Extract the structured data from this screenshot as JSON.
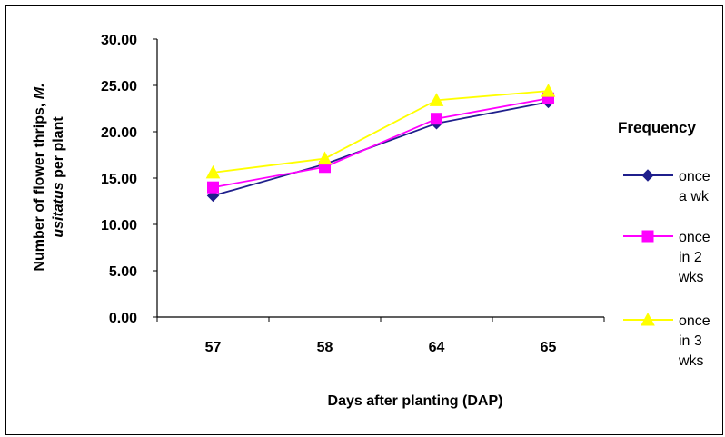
{
  "chart_data": {
    "type": "line",
    "title": "",
    "xlabel": "Days after planting (DAP)",
    "ylabel_parts": [
      "Number of flower thrips, ",
      "M.",
      "usitatus",
      " per plant"
    ],
    "categories": [
      "57",
      "58",
      "64",
      "65"
    ],
    "ylim": [
      0,
      30
    ],
    "yticks": [
      "0.00",
      "5.00",
      "10.00",
      "15.00",
      "20.00",
      "25.00",
      "30.00"
    ],
    "grid": false,
    "legend": {
      "title": "Frequency",
      "placement": "right"
    },
    "series": [
      {
        "name": "once a wk",
        "name_lines": [
          "once",
          "a wk"
        ],
        "color": "#1f1f8c",
        "marker": "diamond",
        "values": [
          13.1,
          16.5,
          20.9,
          23.2
        ]
      },
      {
        "name": "once in 2 wks",
        "name_lines": [
          "once",
          "in 2",
          "wks"
        ],
        "color": "#ff00ff",
        "marker": "square",
        "values": [
          14.0,
          16.2,
          21.4,
          23.6
        ]
      },
      {
        "name": "once in 3 wks",
        "name_lines": [
          "once",
          "in 3",
          "wks"
        ],
        "color": "#ffff00",
        "marker": "triangle",
        "values": [
          15.6,
          17.1,
          23.4,
          24.4
        ]
      }
    ]
  }
}
